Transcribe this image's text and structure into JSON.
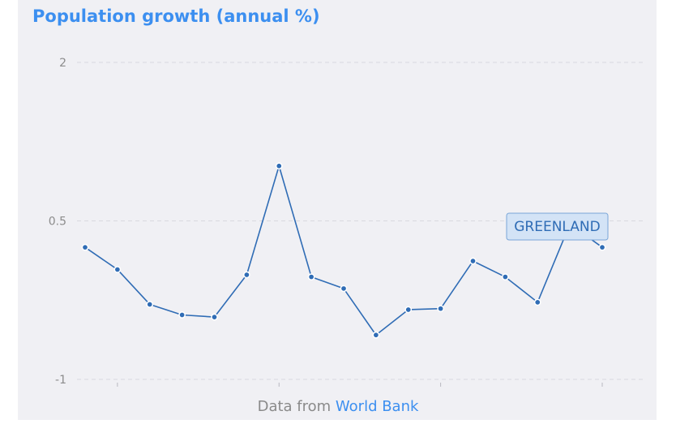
{
  "chart_data": {
    "type": "line",
    "title": "Population growth (annual %)",
    "xlabel": "",
    "ylabel": "",
    "yticks": [
      "2",
      "0.5",
      "-1"
    ],
    "ylim": [
      -1,
      2
    ],
    "grid": true,
    "series": [
      {
        "name": "GREENLAND",
        "color": "#2f6cb5",
        "values": [
          0.25,
          0.04,
          -0.29,
          -0.39,
          -0.41,
          -0.01,
          1.02,
          -0.03,
          -0.14,
          -0.58,
          -0.34,
          -0.33,
          0.12,
          -0.03,
          -0.27,
          0.47,
          0.25
        ]
      }
    ],
    "annotation": "GREENLAND"
  },
  "source": {
    "prefix": "Data from",
    "link": "World Bank"
  },
  "colors": {
    "accent": "#3c8ff0",
    "line": "#2f6cb5",
    "label_bg": "#d3e3f6"
  }
}
